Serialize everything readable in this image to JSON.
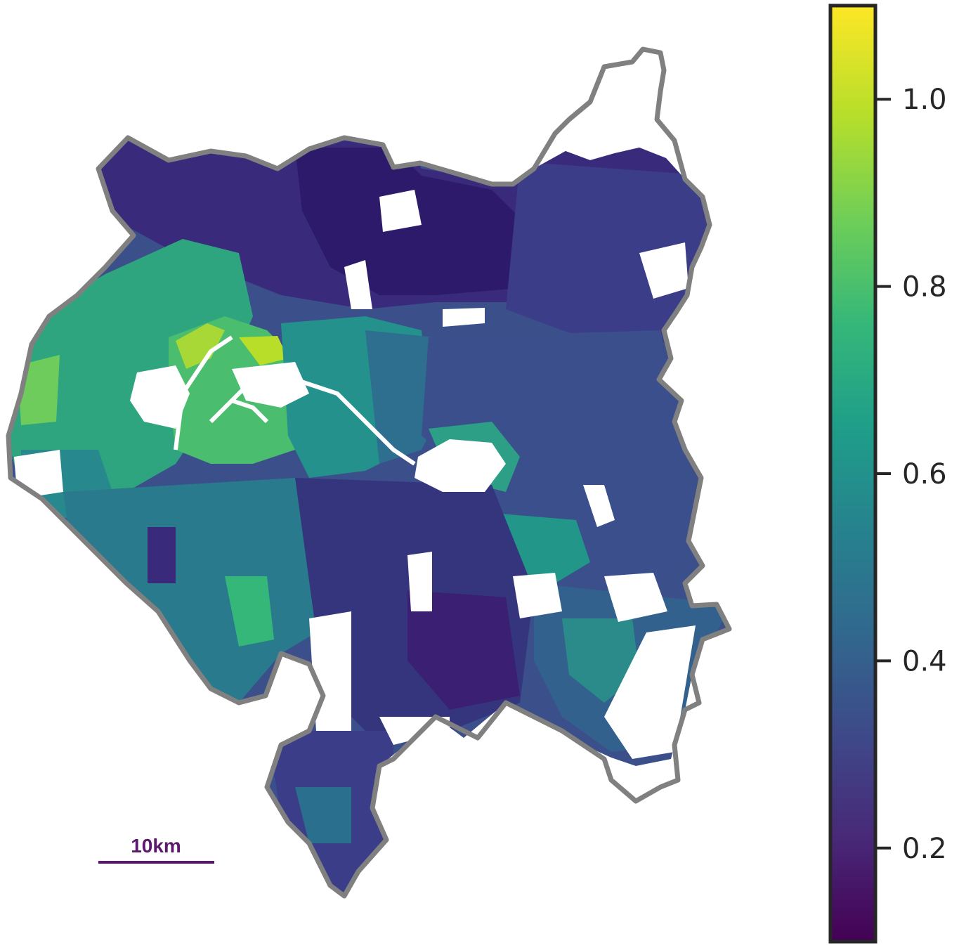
{
  "map": {
    "scale_bar": {
      "label": "10km",
      "color": "#5c176f"
    },
    "boundary_color": "#808080",
    "colormap": "viridis",
    "regions": [
      {
        "id": "paris-west",
        "value": 0.72
      },
      {
        "id": "paris-center",
        "value": 0.6
      },
      {
        "id": "paris-east",
        "value": 0.45
      },
      {
        "id": "north-seine-saint-denis",
        "value": 0.22
      },
      {
        "id": "northeast",
        "value": 0.3
      },
      {
        "id": "east-val-de-marne",
        "value": 0.42
      },
      {
        "id": "south-val-de-marne",
        "value": 0.28
      },
      {
        "id": "southwest-hauts-de-seine",
        "value": 0.5
      },
      {
        "id": "west-hauts-de-seine",
        "value": 0.65
      },
      {
        "id": "far-south",
        "value": 0.33
      }
    ]
  },
  "colorbar": {
    "min": 0.1,
    "max": 1.1,
    "ticks": [
      {
        "value": 1.0,
        "label": "1.0"
      },
      {
        "value": 0.8,
        "label": "0.8"
      },
      {
        "value": 0.6,
        "label": "0.6"
      },
      {
        "value": 0.4,
        "label": "0.4"
      },
      {
        "value": 0.2,
        "label": "0.2"
      }
    ],
    "stops": [
      "#440154",
      "#482878",
      "#3e4989",
      "#31688e",
      "#26828e",
      "#1f9e89",
      "#35b779",
      "#6ece58",
      "#b5de2b",
      "#fde725"
    ]
  }
}
